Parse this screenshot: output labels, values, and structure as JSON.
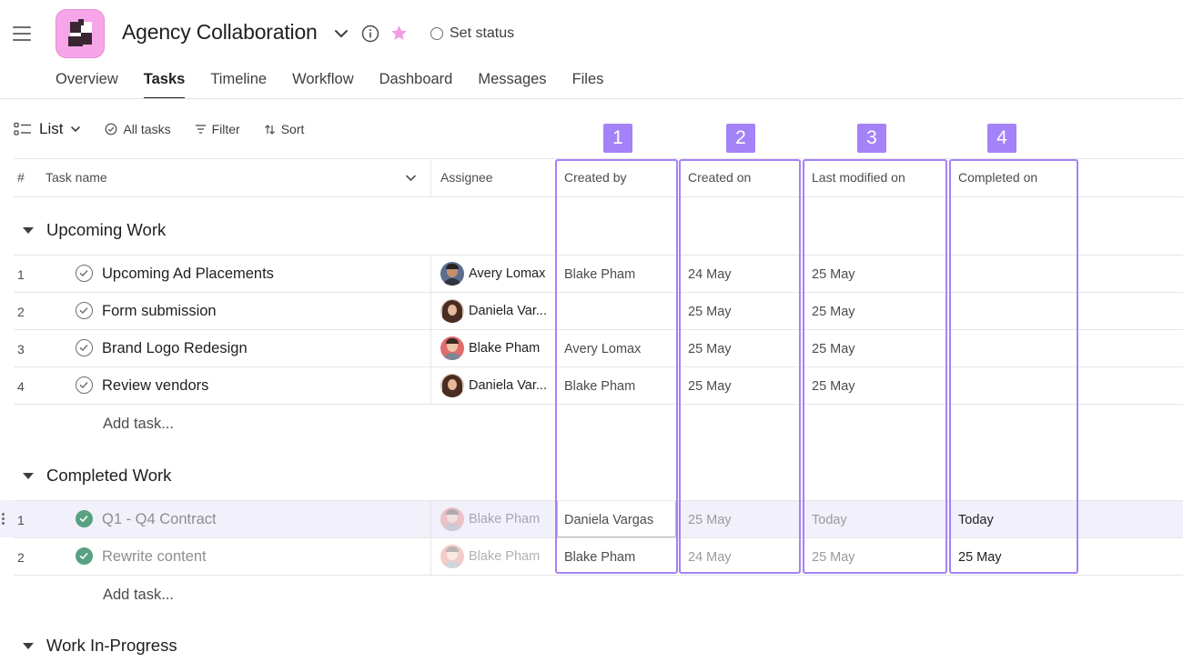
{
  "header": {
    "title": "Agency Collaboration",
    "set_status": "Set status",
    "tabs": [
      "Overview",
      "Tasks",
      "Timeline",
      "Workflow",
      "Dashboard",
      "Messages",
      "Files"
    ],
    "active_tab": "Tasks",
    "accent_color": "#f6a6e8",
    "star_color": "#f39be4"
  },
  "toolbar": {
    "view_label": "List",
    "all_tasks": "All tasks",
    "filter": "Filter",
    "sort": "Sort"
  },
  "columns": {
    "num": "#",
    "task_name": "Task name",
    "assignee": "Assignee",
    "created_by": "Created by",
    "created_on": "Created on",
    "last_modified_on": "Last modified on",
    "completed_on": "Completed on"
  },
  "badges": [
    "1",
    "2",
    "3",
    "4"
  ],
  "annotation_color": "#a682f5",
  "sections": [
    {
      "title": "Upcoming Work",
      "tasks": [
        {
          "num": "1",
          "name": "Upcoming Ad Placements",
          "assignee": "Avery Lomax",
          "created_by": "Blake Pham",
          "created_on": "24 May",
          "last_modified_on": "25 May",
          "completed_on": ""
        },
        {
          "num": "2",
          "name": "Form submission",
          "assignee": "Daniela Var...",
          "created_by": "",
          "created_on": "25 May",
          "last_modified_on": "25 May",
          "completed_on": ""
        },
        {
          "num": "3",
          "name": "Brand Logo Redesign",
          "assignee": "Blake Pham",
          "created_by": "Avery Lomax",
          "created_on": "25 May",
          "last_modified_on": "25 May",
          "completed_on": ""
        },
        {
          "num": "4",
          "name": "Review vendors",
          "assignee": "Daniela Var...",
          "created_by": "Blake Pham",
          "created_on": "25 May",
          "last_modified_on": "25 May",
          "completed_on": ""
        }
      ],
      "add_task": "Add task..."
    },
    {
      "title": "Completed Work",
      "tasks": [
        {
          "num": "1",
          "name": "Q1 - Q4 Contract",
          "assignee": "Blake Pham",
          "created_by": "Daniela Vargas",
          "created_on": "25 May",
          "last_modified_on": "Today",
          "completed_on": "Today"
        },
        {
          "num": "2",
          "name": "Rewrite content",
          "assignee": "Blake Pham",
          "created_by": "Blake Pham",
          "created_on": "24 May",
          "last_modified_on": "25 May",
          "completed_on": "25 May"
        }
      ],
      "add_task": "Add task..."
    },
    {
      "title": "Work In-Progress",
      "tasks": []
    }
  ]
}
